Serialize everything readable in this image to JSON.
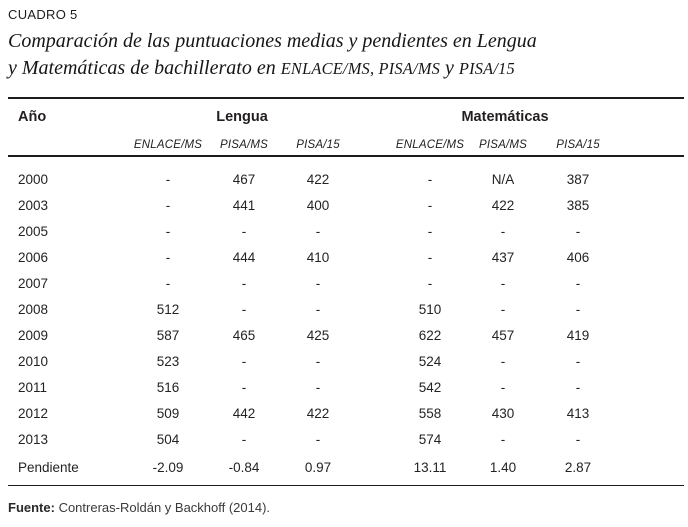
{
  "page": {
    "kicker": "CUADRO 5",
    "title_line1": "Comparación de las puntuaciones medias y pendientes en Lengua",
    "title_line2_pre": "y Matemáticas de bachillerato en ",
    "title_line2_acronyms": "ENLACE/MS, PISA/MS",
    "title_line2_conj": " y ",
    "title_line2_acro2": "PISA/15"
  },
  "table": {
    "year_header": "Año",
    "group_headers": [
      "Lengua",
      "Matemáticas"
    ],
    "subheaders": [
      "ENLACE/MS",
      "PISA/MS",
      "PISA/15",
      "ENLACE/MS",
      "PISA/MS",
      "PISA/15"
    ],
    "rows": [
      {
        "label": "2000",
        "values": [
          "-",
          "467",
          "422",
          "-",
          "N/A",
          "387"
        ]
      },
      {
        "label": "2003",
        "values": [
          "-",
          "441",
          "400",
          "-",
          "422",
          "385"
        ]
      },
      {
        "label": "2005",
        "values": [
          "-",
          "-",
          "-",
          "-",
          "-",
          "-"
        ]
      },
      {
        "label": "2006",
        "values": [
          "-",
          "444",
          "410",
          "-",
          "437",
          "406"
        ]
      },
      {
        "label": "2007",
        "values": [
          "-",
          "-",
          "-",
          "-",
          "-",
          "-"
        ]
      },
      {
        "label": "2008",
        "values": [
          "512",
          "-",
          "-",
          "510",
          "-",
          "-"
        ]
      },
      {
        "label": "2009",
        "values": [
          "587",
          "465",
          "425",
          "622",
          "457",
          "419"
        ]
      },
      {
        "label": "2010",
        "values": [
          "523",
          "-",
          "-",
          "524",
          "-",
          "-"
        ]
      },
      {
        "label": "2011",
        "values": [
          "516",
          "-",
          "-",
          "542",
          "-",
          "-"
        ]
      },
      {
        "label": "2012",
        "values": [
          "509",
          "442",
          "422",
          "558",
          "430",
          "413"
        ]
      },
      {
        "label": "2013",
        "values": [
          "504",
          "-",
          "-",
          "574",
          "-",
          "-"
        ]
      },
      {
        "label": "Pendiente",
        "values": [
          "-2.09",
          "-0.84",
          "0.97",
          "13.11",
          "1.40",
          "2.87"
        ],
        "slope": true
      }
    ]
  },
  "chart_data": {
    "type": "table",
    "title": "Comparación de las puntuaciones medias y pendientes en Lengua y Matemáticas de bachillerato en ENLACE/MS, PISA/MS y PISA/15",
    "columns": [
      "Año",
      "Lengua ENLACE/MS",
      "Lengua PISA/MS",
      "Lengua PISA/15",
      "Matemáticas ENLACE/MS",
      "Matemáticas PISA/MS",
      "Matemáticas PISA/15"
    ],
    "rows": [
      [
        "2000",
        null,
        467,
        422,
        null,
        "N/A",
        387
      ],
      [
        "2003",
        null,
        441,
        400,
        null,
        422,
        385
      ],
      [
        "2005",
        null,
        null,
        null,
        null,
        null,
        null
      ],
      [
        "2006",
        null,
        444,
        410,
        null,
        437,
        406
      ],
      [
        "2007",
        null,
        null,
        null,
        null,
        null,
        null
      ],
      [
        "2008",
        512,
        null,
        null,
        510,
        null,
        null
      ],
      [
        "2009",
        587,
        465,
        425,
        622,
        457,
        419
      ],
      [
        "2010",
        523,
        null,
        null,
        524,
        null,
        null
      ],
      [
        "2011",
        516,
        null,
        null,
        542,
        null,
        null
      ],
      [
        "2012",
        509,
        442,
        422,
        558,
        430,
        413
      ],
      [
        "2013",
        504,
        null,
        null,
        574,
        null,
        null
      ],
      [
        "Pendiente",
        -2.09,
        -0.84,
        0.97,
        13.11,
        1.4,
        2.87
      ]
    ]
  },
  "footer": {
    "source_label": "Fuente:",
    "source_text": " Contreras-Roldán y Backhoff (2014)."
  },
  "colors": {
    "text": "#231f20",
    "rule": "#1c1c1c",
    "background": "#ffffff"
  }
}
